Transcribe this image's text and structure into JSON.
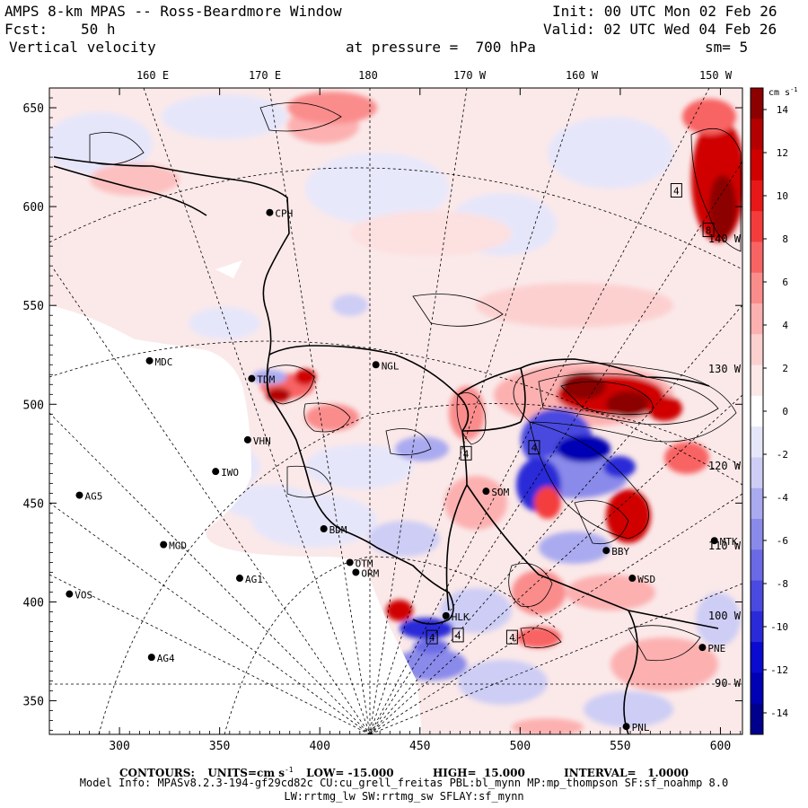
{
  "header": {
    "title": "AMPS 8-km MPAS -- Ross-Beardmore Window",
    "init": "Init: 00 UTC Mon 02 Feb 26",
    "fcst_label": "Fcst:",
    "fcst_value": "50 h",
    "valid": "Valid: 02 UTC Wed 04 Feb 26",
    "field": "Vertical velocity",
    "pressure": "at pressure =  700 hPa",
    "smooth": "sm= 5"
  },
  "axes": {
    "x_ticks": [
      "300",
      "350",
      "400",
      "450",
      "500",
      "550",
      "600"
    ],
    "x_values": [
      300,
      350,
      400,
      450,
      500,
      550,
      600
    ],
    "y_ticks": [
      "350",
      "400",
      "450",
      "500",
      "550",
      "600",
      "650"
    ],
    "y_values": [
      350,
      400,
      450,
      500,
      550,
      600,
      650
    ],
    "x_range": [
      265,
      611
    ],
    "y_range": [
      333,
      660
    ],
    "lon_labels": [
      "160 E",
      "170 E",
      "180",
      "170 W",
      "160 W",
      "150 W"
    ],
    "right_lon_labels": [
      "140 W",
      "130 W",
      "120 W",
      "110 W",
      "100 W",
      "90 W"
    ]
  },
  "stations": [
    {
      "name": "CPH",
      "x": 375,
      "y": 597
    },
    {
      "name": "NGL",
      "x": 428,
      "y": 520
    },
    {
      "name": "MDC",
      "x": 315,
      "y": 522
    },
    {
      "name": "TDM",
      "x": 366,
      "y": 513
    },
    {
      "name": "VHN",
      "x": 364,
      "y": 482
    },
    {
      "name": "IWO",
      "x": 348,
      "y": 466
    },
    {
      "name": "AG5",
      "x": 280,
      "y": 454
    },
    {
      "name": "SOM",
      "x": 483,
      "y": 456
    },
    {
      "name": "BDM",
      "x": 402,
      "y": 437
    },
    {
      "name": "MGD",
      "x": 322,
      "y": 429
    },
    {
      "name": "OTM",
      "x": 415,
      "y": 420
    },
    {
      "name": "ORM",
      "x": 418,
      "y": 415
    },
    {
      "name": "AG1",
      "x": 360,
      "y": 412
    },
    {
      "name": "MTK",
      "x": 597,
      "y": 431
    },
    {
      "name": "BBY",
      "x": 543,
      "y": 426
    },
    {
      "name": "WSD",
      "x": 556,
      "y": 412
    },
    {
      "name": "VOS",
      "x": 275,
      "y": 404
    },
    {
      "name": "AG4",
      "x": 316,
      "y": 372
    },
    {
      "name": "PNE",
      "x": 591,
      "y": 377
    },
    {
      "name": "HLK",
      "x": 463,
      "y": 393
    },
    {
      "name": "PNL",
      "x": 553,
      "y": 337
    }
  ],
  "extremum_labels": [
    {
      "text": "4",
      "x": 578,
      "y": 608
    },
    {
      "text": "8",
      "x": 594,
      "y": 588
    },
    {
      "text": "4",
      "x": 473,
      "y": 475
    },
    {
      "text": "4",
      "x": 507,
      "y": 478
    },
    {
      "text": "4",
      "x": 456,
      "y": 382
    },
    {
      "text": "4",
      "x": 469,
      "y": 383
    },
    {
      "text": "4",
      "x": 496,
      "y": 382
    }
  ],
  "colorbar": {
    "units": "cm s",
    "units_exp": "-1",
    "labels": [
      "14",
      "12",
      "10",
      "8",
      "6",
      "4",
      "2",
      "0",
      "-2",
      "-4",
      "-6",
      "-8",
      "-10",
      "-12",
      "-14"
    ],
    "colors": [
      "#8c0000",
      "#b40000",
      "#d00000",
      "#e81818",
      "#f43c3c",
      "#f86464",
      "#fa8c8c",
      "#fcb0b0",
      "#fdd0d0",
      "#fde8e8",
      "#ffffff",
      "#e6e6fa",
      "#cdcdf5",
      "#aaaaf0",
      "#8a8aea",
      "#6a6ae6",
      "#4a4ae0",
      "#2a2ad8",
      "#0a0ad0",
      "#0000b4",
      "#00008c"
    ]
  },
  "footer": {
    "contours_label": "CONTOURS:",
    "units_label": "UNITS=cm s",
    "units_exp": "-1",
    "low": "LOW= -15.000",
    "high": "HIGH=  15.000",
    "interval": "INTERVAL=   1.0000",
    "model_info": "Model Info: MPASv8.2.3-194-gf29cd82c CU:cu_grell_freitas PBL:bl_mynn MP:mp_thompson SF:sf_noahmp 8.0",
    "model_info2": "LW:rrtmg_lw SW:rrtmg_sw SFLAY:sf_mynn"
  }
}
